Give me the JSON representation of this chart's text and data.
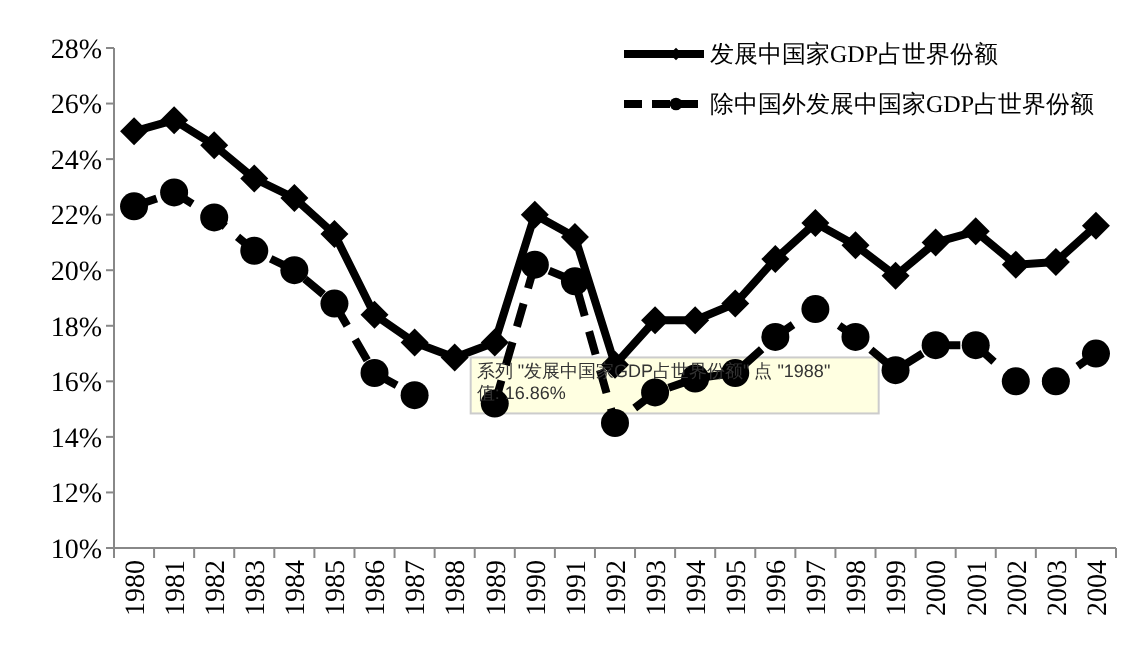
{
  "chart_data": {
    "type": "line",
    "categories": [
      "1980",
      "1981",
      "1982",
      "1983",
      "1984",
      "1985",
      "1986",
      "1987",
      "1988",
      "1989",
      "1990",
      "1991",
      "1992",
      "1993",
      "1994",
      "1995",
      "1996",
      "1997",
      "1998",
      "1999",
      "2000",
      "2001",
      "2002",
      "2003",
      "2004"
    ],
    "series": [
      {
        "name": "发展中国家GDP占世界份额",
        "color": "#000000",
        "marker": "diamond",
        "line_style": "solid",
        "values": [
          25.0,
          25.4,
          24.5,
          23.3,
          22.6,
          21.3,
          18.4,
          17.4,
          16.86,
          17.4,
          22.0,
          21.2,
          16.6,
          18.2,
          18.2,
          18.8,
          20.4,
          21.7,
          20.9,
          19.8,
          21.0,
          21.4,
          20.2,
          20.3,
          21.6
        ]
      },
      {
        "name": "除中国外发展中国家GDP占世界份额",
        "color": "#000000",
        "marker": "circle",
        "line_style": "dashed",
        "values": [
          22.3,
          22.8,
          21.9,
          20.7,
          20.0,
          18.8,
          16.3,
          15.5,
          null,
          15.2,
          20.2,
          19.6,
          14.5,
          15.6,
          16.1,
          16.3,
          17.6,
          18.6,
          17.6,
          16.4,
          17.3,
          17.3,
          16.0,
          16.0,
          17.0
        ]
      }
    ],
    "ylim": [
      10,
      28
    ],
    "yticks": [
      {
        "value": 10,
        "label": "10%"
      },
      {
        "value": 12,
        "label": "12%"
      },
      {
        "value": 14,
        "label": "14%"
      },
      {
        "value": 16,
        "label": "16%"
      },
      {
        "value": 18,
        "label": "18%"
      },
      {
        "value": 20,
        "label": "20%"
      },
      {
        "value": 22,
        "label": "22%"
      },
      {
        "value": 24,
        "label": "24%"
      },
      {
        "value": 26,
        "label": "26%"
      },
      {
        "value": 28,
        "label": "28%"
      }
    ],
    "grid": false,
    "legend": "top right",
    "annotations": [
      {
        "text": "系列 \"发展中国家GDP占世界份额\" 点 \"1988\"\n值: 16.86%",
        "x": "1988",
        "y": 16.86
      }
    ]
  }
}
